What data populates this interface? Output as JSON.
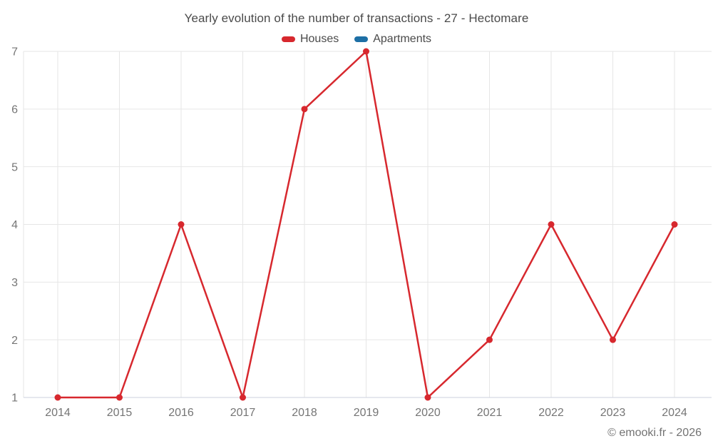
{
  "title": "Yearly evolution of the number of transactions - 27 - Hectomare",
  "legend": {
    "items": [
      {
        "label": "Houses",
        "color": "#d7282e"
      },
      {
        "label": "Apartments",
        "color": "#1d6fa5"
      }
    ]
  },
  "watermark": "© emooki.fr - 2026",
  "colors": {
    "grid": "#e6e6e6",
    "axis_line": "#ccd2dd",
    "tick_label": "#757575",
    "title_text": "#4a4a4a"
  },
  "chart_data": {
    "type": "line",
    "title": "Yearly evolution of the number of transactions - 27 - Hectomare",
    "x": [
      "2014",
      "2015",
      "2016",
      "2017",
      "2018",
      "2019",
      "2020",
      "2021",
      "2022",
      "2023",
      "2024"
    ],
    "series": [
      {
        "name": "Houses",
        "color": "#d7282e",
        "values": [
          1,
          1,
          4,
          1,
          6,
          7,
          1,
          2,
          4,
          2,
          4
        ]
      },
      {
        "name": "Apartments",
        "color": "#1d6fa5",
        "values": []
      }
    ],
    "xlabel": "",
    "ylabel": "",
    "ylim": [
      1,
      7
    ],
    "yticks": [
      1,
      2,
      3,
      4,
      5,
      6,
      7
    ],
    "grid": true,
    "legend_position": "top",
    "marker": "circle"
  }
}
